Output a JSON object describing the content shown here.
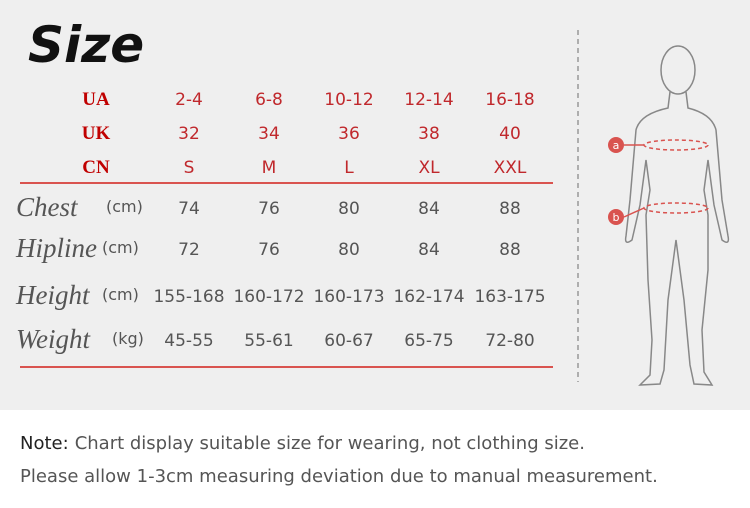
{
  "title": "Size",
  "table": {
    "header_rows": [
      {
        "label": "UA",
        "values": [
          "2-4",
          "6-8",
          "10-12",
          "12-14",
          "16-18"
        ]
      },
      {
        "label": "UK",
        "values": [
          "32",
          "34",
          "36",
          "38",
          "40"
        ]
      },
      {
        "label": "CN",
        "values": [
          "S",
          "M",
          "L",
          "XL",
          "XXL"
        ]
      }
    ],
    "rows": [
      {
        "label": "Chest",
        "unit": "(cm)",
        "values": [
          "74",
          "76",
          "80",
          "84",
          "88"
        ]
      },
      {
        "label": "Hipline",
        "unit": "(cm)",
        "values": [
          "72",
          "76",
          "80",
          "84",
          "88"
        ]
      },
      {
        "label": "Height",
        "unit": "(cm)",
        "values": [
          "155-168",
          "160-172",
          "160-173",
          "162-174",
          "163-175"
        ]
      },
      {
        "label": "Weight",
        "unit": "(kg)",
        "values": [
          "45-55",
          "55-61",
          "60-67",
          "65-75",
          "72-80"
        ]
      }
    ]
  },
  "figure": {
    "markers": [
      "a",
      "b"
    ]
  },
  "note": {
    "label": "Note:",
    "lines": [
      "Chart display suitable size for wearing, not clothing size.",
      "Please allow 1-3cm measuring deviation due to manual measurement."
    ]
  }
}
